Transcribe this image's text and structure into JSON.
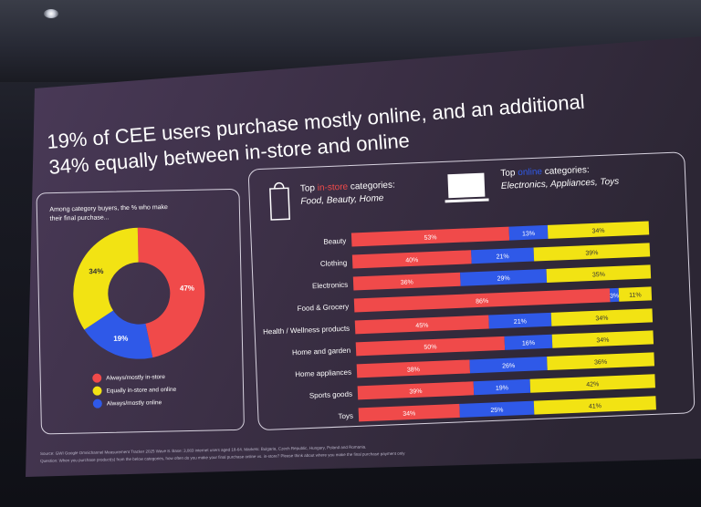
{
  "slide": {
    "title_line1": "19% of CEE users purchase mostly online, and an additional",
    "title_line2": "34% equally between in-store and online",
    "colors": {
      "red": "#f04a4a",
      "yellow": "#f2e313",
      "blue": "#2f59e8",
      "slide_bg": "#3e2f45"
    }
  },
  "left_panel": {
    "intro_line1": "Among category buyers, the % who make",
    "intro_line2": "their final purchase...",
    "legend": [
      {
        "label": "Always/mostly in-store",
        "color": "#f04a4a"
      },
      {
        "label": "Equally in-store and online",
        "color": "#f2e313"
      },
      {
        "label": "Always/mostly online",
        "color": "#2f59e8"
      }
    ]
  },
  "right_panel": {
    "instore_head_prefix": "Top ",
    "instore_head_highlight": "in-store",
    "instore_head_suffix": " categories:",
    "instore_sub": "Food, Beauty, Home",
    "online_head_prefix": "Top ",
    "online_head_highlight": "online",
    "online_head_suffix": " categories:",
    "online_sub": "Electronics, Appliances, Toys",
    "bag_icon": "shopping-bag-icon",
    "laptop_icon": "laptop-icon"
  },
  "footer": {
    "source_line": "Source: GWI Google Omnichannel Measurement Tracker 2025 Wave 8. Base: 3,083 internet users aged 18-64. Markets: Bulgaria, Czech Republic, Hungary, Poland and Romania.",
    "question_line": "Question: When you purchase product(s) from the below categories, how often do you make your final purchase online vs. in-store? Please think about where you make the final purchase payment only"
  },
  "chart_data": [
    {
      "type": "pie",
      "donut": true,
      "labels": [
        "Always/mostly in-store",
        "Always/mostly online",
        "Equally in-store and online"
      ],
      "values": [
        47,
        19,
        34
      ],
      "value_labels": [
        "47%",
        "19%",
        "34%"
      ],
      "colors": [
        "#f04a4a",
        "#2f59e8",
        "#f2e313"
      ]
    },
    {
      "type": "bar",
      "orientation": "horizontal",
      "stacked": true,
      "categories": [
        "Beauty",
        "Clothing",
        "Electronics",
        "Food & Grocery",
        "Health / Wellness products",
        "Home and garden",
        "Home appliances",
        "Sports goods",
        "Toys"
      ],
      "series": [
        {
          "name": "Always/mostly in-store",
          "color": "#f04a4a",
          "values": [
            53,
            40,
            36,
            86,
            45,
            50,
            38,
            39,
            34
          ],
          "labels": [
            "53%",
            "40%",
            "36%",
            "86%",
            "45%",
            "50%",
            "38%",
            "39%",
            "34%"
          ]
        },
        {
          "name": "Always/mostly online",
          "color": "#2f59e8",
          "values": [
            13,
            21,
            29,
            3,
            21,
            16,
            26,
            19,
            25
          ],
          "labels": [
            "13%",
            "21%",
            "29%",
            "3%",
            "21%",
            "16%",
            "26%",
            "19%",
            "25%"
          ]
        },
        {
          "name": "Equally in-store and online",
          "color": "#f2e313",
          "values": [
            34,
            39,
            35,
            11,
            34,
            34,
            36,
            42,
            41
          ],
          "labels": [
            "34%",
            "39%",
            "35%",
            "11%",
            "34%",
            "34%",
            "36%",
            "42%",
            "41%"
          ]
        }
      ]
    }
  ]
}
